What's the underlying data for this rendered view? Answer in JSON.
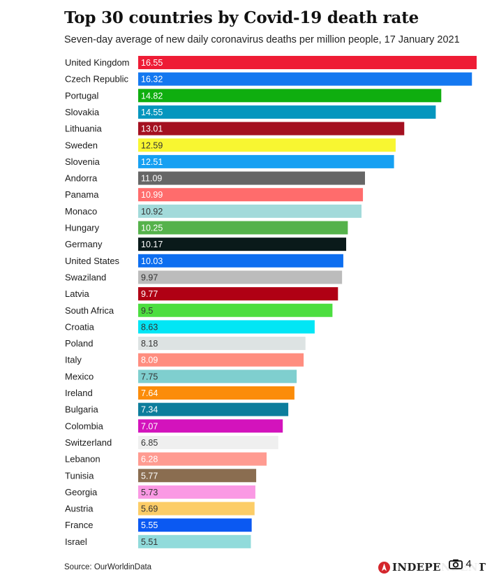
{
  "header": {
    "title": "Top 30 countries by Covid-19 death rate",
    "subtitle": "Seven-day average of new daily coronavirus deaths per million people, 17 January 2021"
  },
  "footer": {
    "source": "Source: OurWorldinData",
    "brand": "INDEPENDENT",
    "photo_count": "4"
  },
  "chart_data": {
    "type": "bar",
    "orientation": "horizontal",
    "categories": [
      "United Kingdom",
      "Czech Republic",
      "Portugal",
      "Slovakia",
      "Lithuania",
      "Sweden",
      "Slovenia",
      "Andorra",
      "Panama",
      "Monaco",
      "Hungary",
      "Germany",
      "United States",
      "Swaziland",
      "Latvia",
      "South Africa",
      "Croatia",
      "Poland",
      "Italy",
      "Mexico",
      "Ireland",
      "Bulgaria",
      "Colombia",
      "Switzerland",
      "Lebanon",
      "Tunisia",
      "Georgia",
      "Austria",
      "France",
      "Israel"
    ],
    "values": [
      16.55,
      16.32,
      14.82,
      14.55,
      13.01,
      12.59,
      12.51,
      11.09,
      10.99,
      10.92,
      10.25,
      10.17,
      10.03,
      9.97,
      9.77,
      9.5,
      8.63,
      8.18,
      8.09,
      7.75,
      7.64,
      7.34,
      7.07,
      6.85,
      6.28,
      5.77,
      5.73,
      5.69,
      5.55,
      5.51
    ],
    "labels": [
      "16.55",
      "16.32",
      "14.82",
      "14.55",
      "13.01",
      "12.59",
      "12.51",
      "11.09",
      "10.99",
      "10.92",
      "10.25",
      "10.17",
      "10.03",
      "9.97",
      "9.77",
      "9.5",
      "8.63",
      "8.18",
      "8.09",
      "7.75",
      "7.64",
      "7.34",
      "7.07",
      "6.85",
      "6.28",
      "5.77",
      "5.73",
      "5.69",
      "5.55",
      "5.51"
    ],
    "colors": [
      "#ee1c35",
      "#1478f0",
      "#0fae0f",
      "#0596be",
      "#a41020",
      "#f8f631",
      "#16a0f2",
      "#666666",
      "#ff6c6c",
      "#a2dada",
      "#55b24b",
      "#0a1a1a",
      "#0d6ef0",
      "#bcbcbc",
      "#b00014",
      "#4cde40",
      "#02e6f5",
      "#dde3e3",
      "#ff8d7f",
      "#7fcfcf",
      "#fb8c0a",
      "#0d7d9c",
      "#d313bc",
      "#efefef",
      "#ff9b91",
      "#8a6d50",
      "#fa99e4",
      "#fccd67",
      "#0b59f2",
      "#91dbdb"
    ],
    "label_colors": [
      "#ffffff",
      "#ffffff",
      "#ffffff",
      "#ffffff",
      "#ffffff",
      "#333333",
      "#ffffff",
      "#ffffff",
      "#ffffff",
      "#333333",
      "#ffffff",
      "#ffffff",
      "#ffffff",
      "#333333",
      "#ffffff",
      "#333333",
      "#333333",
      "#333333",
      "#ffffff",
      "#333333",
      "#ffffff",
      "#ffffff",
      "#ffffff",
      "#333333",
      "#ffffff",
      "#ffffff",
      "#333333",
      "#333333",
      "#ffffff",
      "#333333"
    ],
    "xlim": [
      0,
      16.55
    ],
    "grid": false,
    "legend": "none"
  }
}
